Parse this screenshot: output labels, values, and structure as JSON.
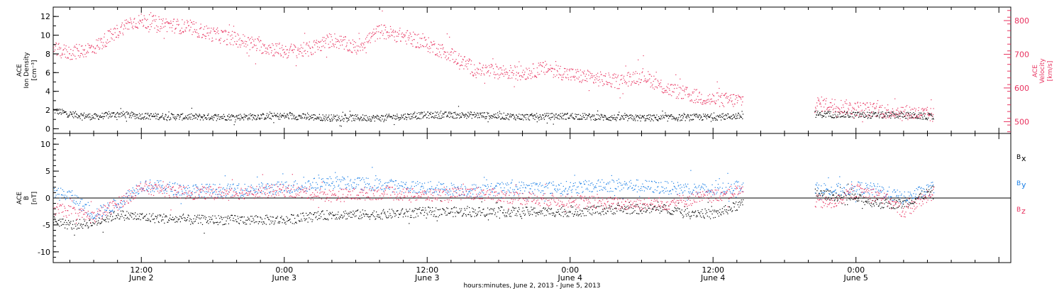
{
  "colors": {
    "black": "#000000",
    "magenta": "#e8325f",
    "blue": "#1a7fe6"
  },
  "x_axis": {
    "title": "hours:minutes, June  2, 2013 - June  5, 2013",
    "ticks": [
      {
        "hour": 12,
        "time": "12:00",
        "day": "June 2"
      },
      {
        "hour": 24,
        "time": "0:00",
        "day": "June 3"
      },
      {
        "hour": 36,
        "time": "12:00",
        "day": "June 3"
      },
      {
        "hour": 48,
        "time": "0:00",
        "day": "June 4"
      },
      {
        "hour": 60,
        "time": "12:00",
        "day": "June 4"
      },
      {
        "hour": 72,
        "time": "0:00",
        "day": "June 5"
      }
    ]
  },
  "panels": {
    "top": {
      "left_label": [
        "ACE",
        "Ion Density",
        "[cm⁻³]"
      ],
      "right_label": [
        "ACE",
        "Velocity",
        "[km/s]"
      ],
      "left_ticks": [
        "0",
        "2",
        "4",
        "6",
        "8",
        "10",
        "12"
      ],
      "right_ticks": [
        "500",
        "600",
        "700",
        "800"
      ]
    },
    "bottom": {
      "left_label": [
        "ACE",
        "B",
        "[nT]"
      ],
      "left_ticks": [
        "-10",
        "-5",
        "0",
        "5",
        "10"
      ],
      "legend": [
        {
          "label": "B",
          "sub": "x",
          "color": "#000000"
        },
        {
          "label": "B",
          "sub": "y",
          "color": "#1a7fe6"
        },
        {
          "label": "B",
          "sub": "z",
          "color": "#e8325f"
        }
      ]
    }
  },
  "chart_data": [
    {
      "type": "scatter",
      "xlabel": "hours:minutes, June  2, 2013 - June  5, 2013",
      "xlim_hours": [
        4.6,
        85
      ],
      "ylabel": "ACE Ion Density [cm⁻³]",
      "ylim": [
        -0.5,
        13
      ],
      "y2label": "ACE Velocity [km/s]",
      "y2lim": [
        465,
        840
      ],
      "gaps_hours": [
        [
          62.5,
          68.5
        ]
      ],
      "series": [
        {
          "name": "Ion Density",
          "axis": "left",
          "color": "#000000",
          "x": [
            4.6,
            6,
            8,
            10,
            12,
            16,
            20,
            24,
            28,
            32,
            36,
            40,
            44,
            48,
            52,
            56,
            60,
            62.5,
            68.5,
            72,
            76,
            78.5
          ],
          "y": [
            2.0,
            1.6,
            1.3,
            1.6,
            1.4,
            1.3,
            1.3,
            1.4,
            1.2,
            1.2,
            1.5,
            1.5,
            1.3,
            1.4,
            1.2,
            1.2,
            1.3,
            1.4,
            1.6,
            1.5,
            1.5,
            1.3
          ]
        },
        {
          "name": "Velocity",
          "axis": "right",
          "color": "#e8325f",
          "x": [
            4.6,
            6,
            8,
            10,
            11,
            12,
            14,
            16,
            18,
            20,
            22,
            24,
            26,
            28,
            30,
            32,
            34,
            36,
            38,
            40,
            42,
            44,
            46,
            48,
            50,
            52,
            54,
            56,
            58,
            60,
            62.5,
            68.5,
            70,
            72,
            74,
            76,
            78.5
          ],
          "y": [
            715,
            705,
            720,
            770,
            795,
            800,
            790,
            780,
            760,
            745,
            725,
            710,
            715,
            745,
            720,
            770,
            755,
            730,
            700,
            655,
            650,
            645,
            660,
            640,
            630,
            620,
            640,
            600,
            580,
            565,
            565,
            555,
            550,
            540,
            535,
            530,
            520
          ]
        }
      ]
    },
    {
      "type": "scatter",
      "xlabel": "hours:minutes, June  2, 2013 - June  5, 2013",
      "xlim_hours": [
        4.6,
        85
      ],
      "ylabel": "ACE B [nT]",
      "ylim": [
        -12,
        12
      ],
      "gaps_hours": [
        [
          62.5,
          68.5
        ]
      ],
      "reference_line": 0,
      "series": [
        {
          "name": "Bx",
          "color": "#000000",
          "x": [
            4.6,
            6,
            8,
            10,
            12,
            16,
            20,
            24,
            28,
            32,
            36,
            40,
            44,
            48,
            52,
            56,
            60,
            62.5,
            68.5,
            70,
            72,
            74,
            76,
            78.5
          ],
          "y": [
            -4.0,
            -5.0,
            -4.5,
            -3.0,
            -3.5,
            -4.0,
            -4.0,
            -4.0,
            -3.0,
            -3.0,
            -2.5,
            -2.5,
            -2.5,
            -2.5,
            -2.0,
            -2.0,
            -3.0,
            -1.0,
            1.0,
            0.5,
            0.0,
            -1.0,
            -1.0,
            1.5
          ]
        },
        {
          "name": "By",
          "color": "#1a7fe6",
          "x": [
            4.6,
            6,
            8,
            10,
            12,
            16,
            20,
            24,
            28,
            32,
            36,
            40,
            44,
            48,
            52,
            56,
            60,
            62.5,
            68.5,
            70,
            72,
            74,
            76,
            78.5
          ],
          "y": [
            1.0,
            0.5,
            -3.0,
            -1.0,
            2.5,
            1.5,
            1.5,
            2.0,
            3.0,
            2.5,
            2.0,
            1.5,
            2.0,
            2.0,
            2.5,
            2.0,
            1.5,
            2.5,
            2.0,
            1.5,
            2.0,
            1.5,
            0.0,
            2.0
          ]
        },
        {
          "name": "Bz",
          "color": "#e8325f",
          "x": [
            4.6,
            6,
            8,
            10,
            12,
            16,
            20,
            24,
            28,
            32,
            36,
            40,
            44,
            48,
            52,
            56,
            60,
            62.5,
            68.5,
            70,
            72,
            74,
            76,
            78.5
          ],
          "y": [
            -2.0,
            -2.5,
            -3.5,
            -1.0,
            2.0,
            1.0,
            1.0,
            1.5,
            0.5,
            1.0,
            0.5,
            1.0,
            0.0,
            -0.5,
            -1.0,
            -1.0,
            0.5,
            1.5,
            -0.5,
            -1.0,
            1.5,
            0.5,
            -2.5,
            1.0
          ]
        }
      ]
    }
  ]
}
